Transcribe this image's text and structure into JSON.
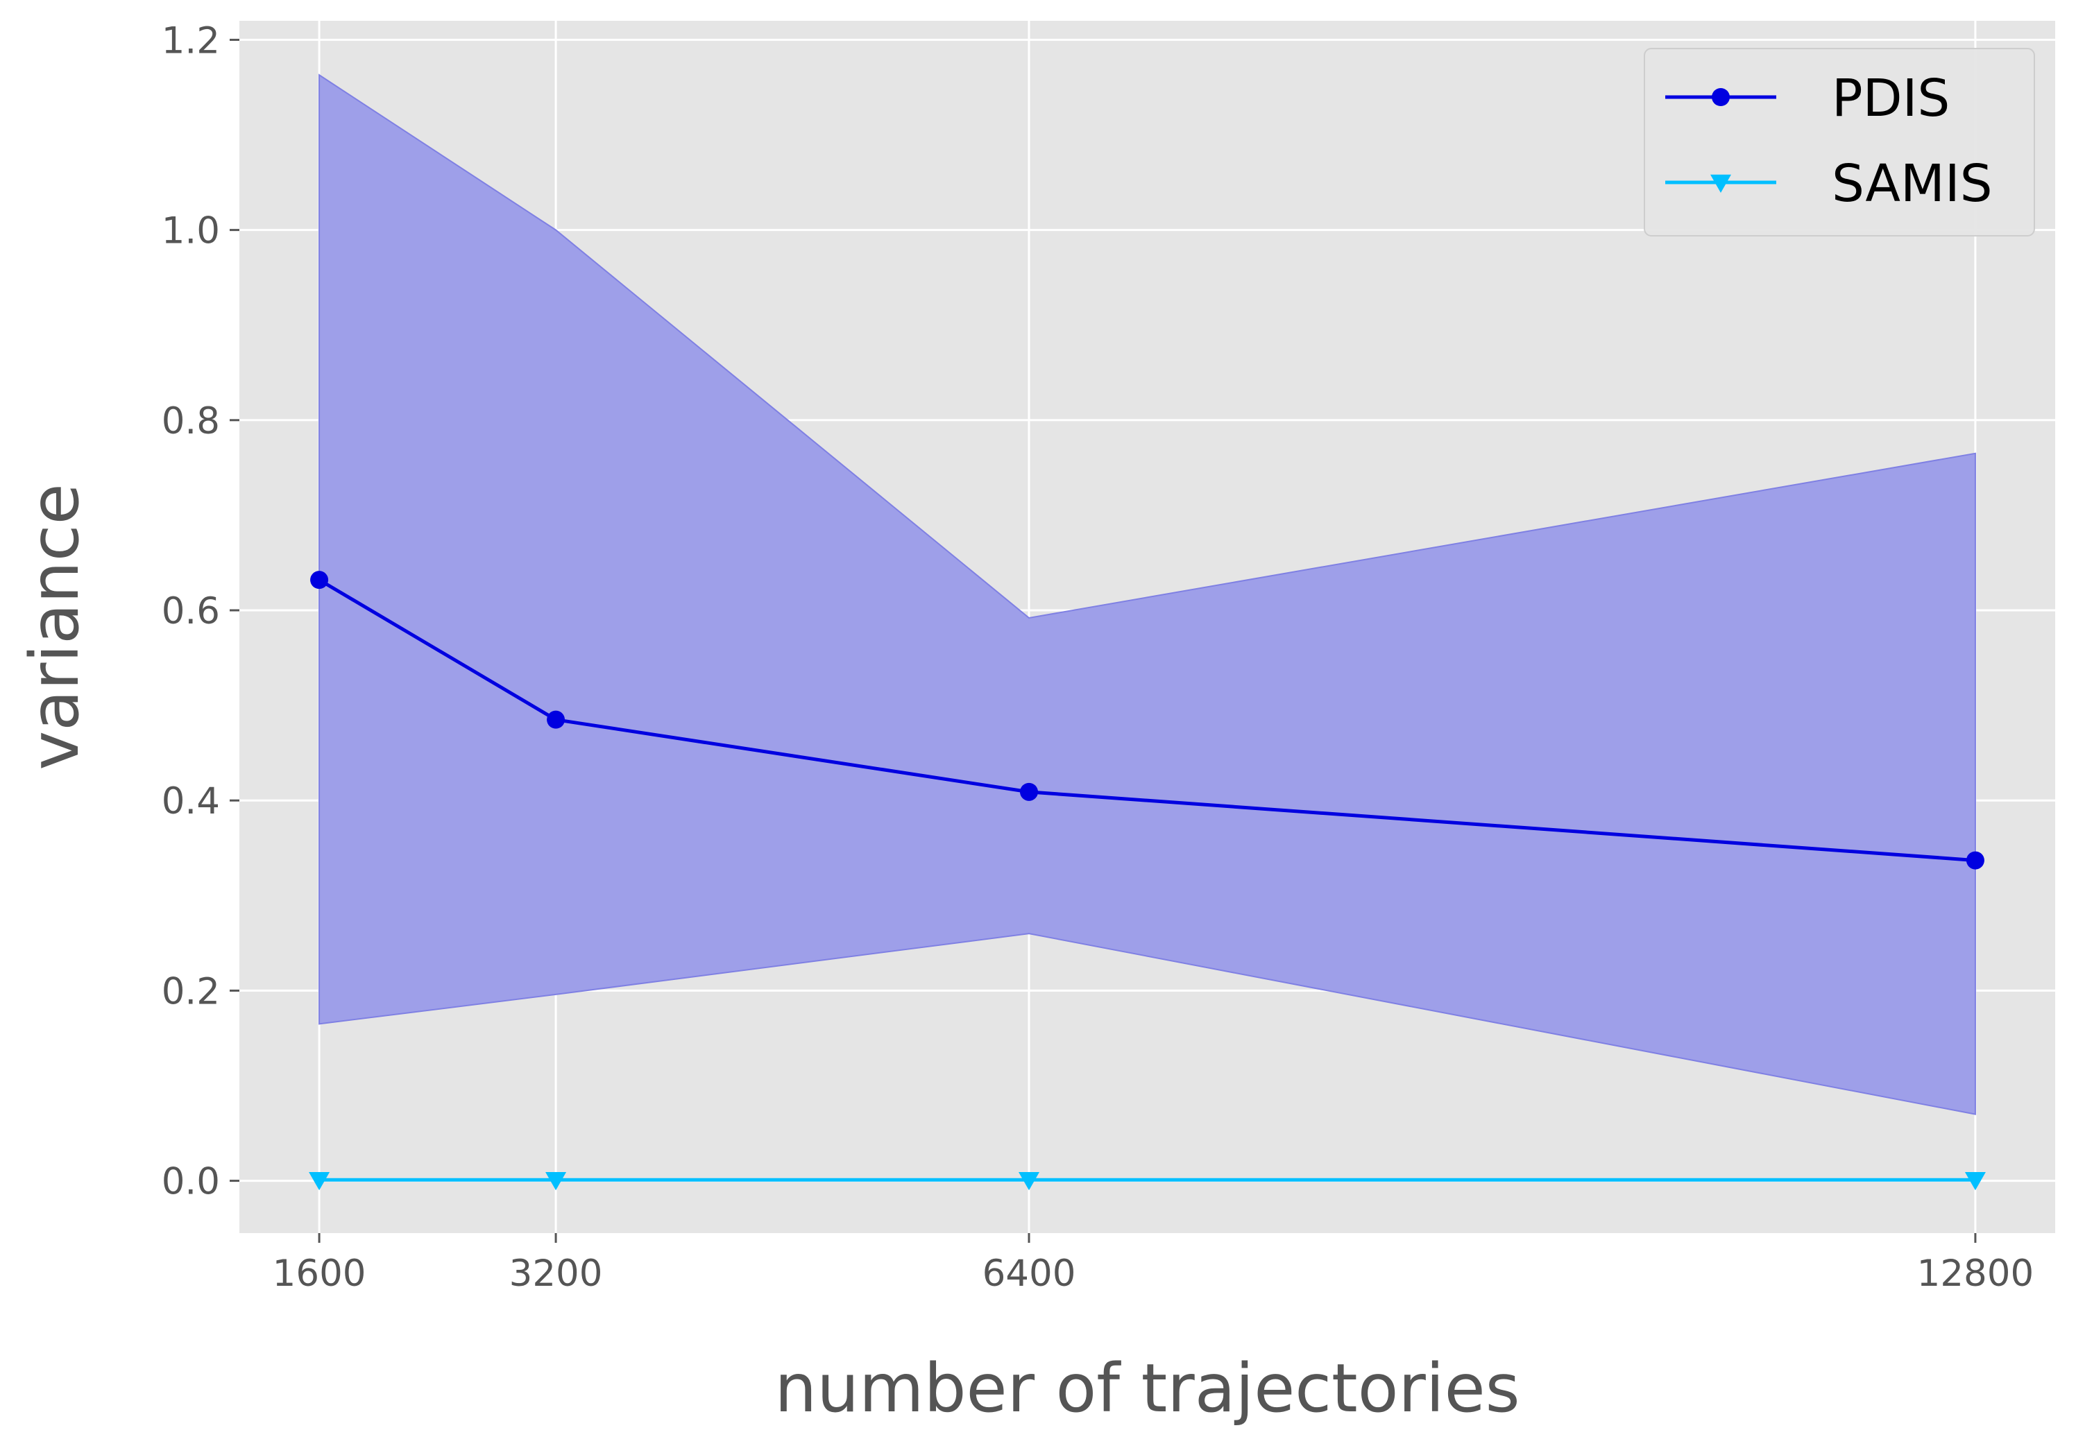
{
  "chart_data": {
    "type": "line",
    "title": "",
    "xlabel": "number of trajectories",
    "ylabel": "variance",
    "x": [
      1600,
      3200,
      6400,
      12800
    ],
    "x_tick_labels": [
      "1600",
      "3200",
      "6400",
      "12800"
    ],
    "xlim": [
      1060,
      13340
    ],
    "ylim": [
      -0.055,
      1.22
    ],
    "y_ticks": [
      0.0,
      0.2,
      0.4,
      0.6,
      0.8,
      1.0,
      1.2
    ],
    "y_tick_labels": [
      "0.0",
      "0.2",
      "0.4",
      "0.6",
      "0.8",
      "1.0",
      "1.2"
    ],
    "grid": true,
    "legend_position": "top-right",
    "colors": {
      "background": "#e5e5e5",
      "grid": "#ffffff",
      "band": "#9e9fe9",
      "band_edge": "#7f80e3"
    },
    "series": [
      {
        "name": "PDIS",
        "values": [
          0.632,
          0.485,
          0.409,
          0.337
        ],
        "band_upper": [
          1.163,
          1.0,
          0.592,
          0.765
        ],
        "band_lower": [
          0.165,
          0.196,
          0.26,
          0.07
        ],
        "color": "#0000e0",
        "marker": "circle"
      },
      {
        "name": "SAMIS",
        "values": [
          0.001,
          0.001,
          0.001,
          0.001
        ],
        "color": "#00bfff",
        "marker": "triangle-down"
      }
    ]
  }
}
